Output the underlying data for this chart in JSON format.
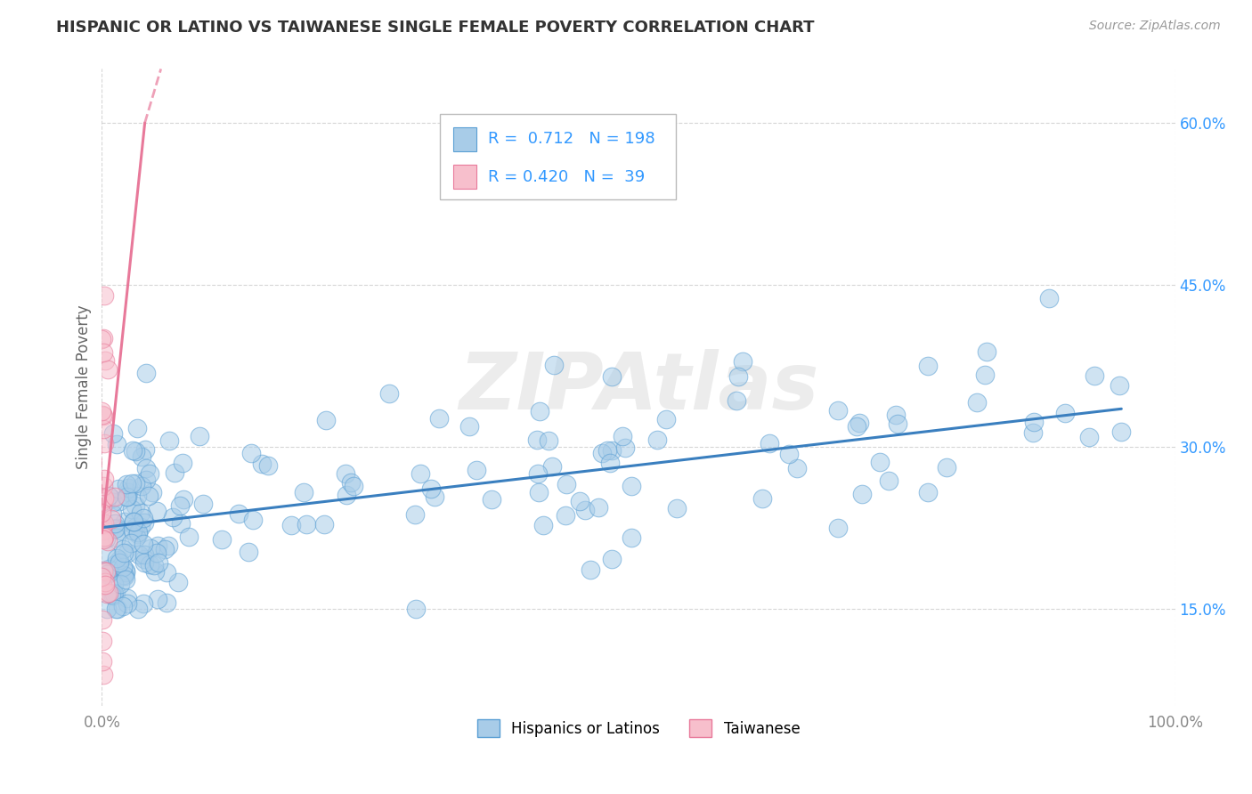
{
  "title": "HISPANIC OR LATINO VS TAIWANESE SINGLE FEMALE POVERTY CORRELATION CHART",
  "source_text": "Source: ZipAtlas.com",
  "ylabel": "Single Female Poverty",
  "legend_label_1": "Hispanics or Latinos",
  "legend_label_2": "Taiwanese",
  "R1": "0.712",
  "N1": "198",
  "R2": "0.420",
  "N2": "39",
  "blue_face_color": "#a8cce8",
  "blue_edge_color": "#5a9fd4",
  "pink_face_color": "#f7bfcc",
  "pink_edge_color": "#e8799a",
  "blue_line_color": "#3a7fbf",
  "pink_line_color": "#e8799a",
  "watermark_text": "ZIPAtlas",
  "background_color": "#ffffff",
  "grid_color": "#cccccc",
  "title_color": "#333333",
  "axis_label_color": "#666666",
  "legend_text_color": "#3399ff",
  "tick_color_y": "#3399ff",
  "tick_color_x": "#888888",
  "xlim": [
    0.0,
    1.0
  ],
  "ylim": [
    0.06,
    0.65
  ],
  "y_ticks": [
    0.15,
    0.3,
    0.45,
    0.6
  ],
  "blue_scatter_seed": 42,
  "pink_scatter_seed": 7,
  "N1_int": 198,
  "N2_int": 39,
  "blue_line_x0": 0.0,
  "blue_line_y0": 0.225,
  "blue_line_x1": 0.95,
  "blue_line_y1": 0.335,
  "pink_line_x0": -0.005,
  "pink_line_y0": 0.135,
  "pink_line_x1": 0.045,
  "pink_line_y1": 0.62,
  "pink_line_dash_x0": 0.045,
  "pink_line_dash_y0": 0.62,
  "pink_line_dash_x1": 0.0,
  "pink_line_dash_y1": 0.2
}
